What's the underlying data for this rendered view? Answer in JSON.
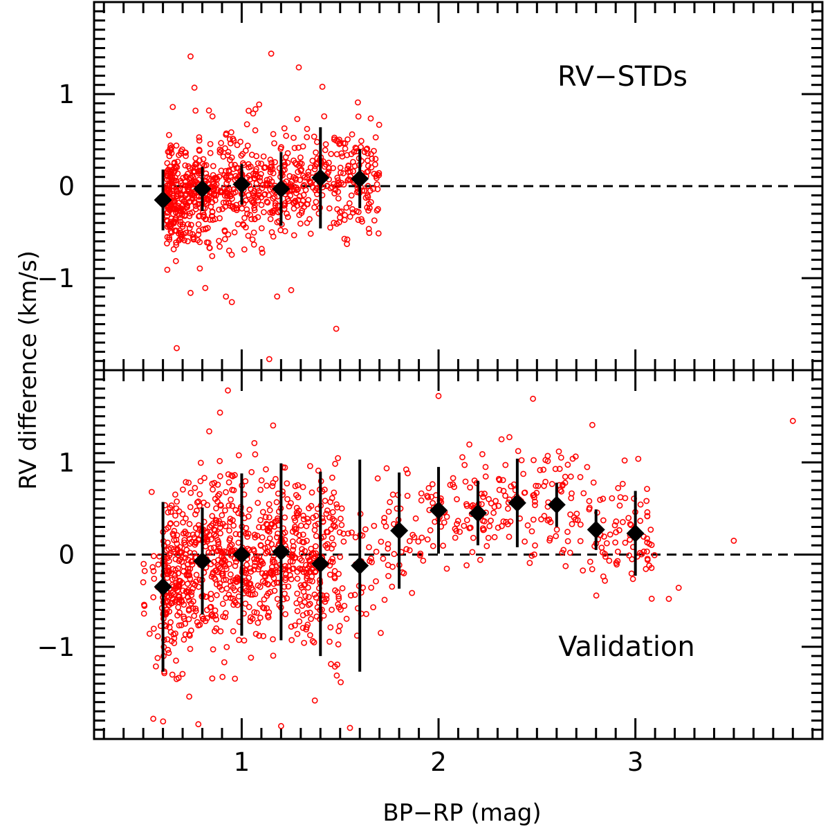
{
  "chart_data": {
    "type": "scatter",
    "xlabel": "BP−RP (mag)",
    "ylabel": "RV difference (km/s)",
    "xlim": [
      0.25,
      3.95
    ],
    "x_ticks": [
      1,
      2,
      3
    ],
    "x_tick_labels": [
      "1",
      "2",
      "3"
    ],
    "colors": {
      "points": "#ff0000",
      "binned": "#000000",
      "axes": "#000000"
    },
    "panels": [
      {
        "name": "top",
        "label": "RV−STDs",
        "ylim": [
          -2.0,
          2.0
        ],
        "y_ticks": [
          -1,
          0,
          1
        ],
        "y_tick_labels": [
          "−1",
          "0",
          "1"
        ],
        "reference_line_y": 0,
        "scatter": {
          "x_range": [
            0.6,
            1.7
          ],
          "n_points": 900,
          "spread": 0.28,
          "outliers": [
            [
              0.74,
              1.41
            ],
            [
              1.15,
              1.44
            ],
            [
              1.29,
              1.29
            ],
            [
              1.41,
              1.08
            ],
            [
              0.76,
              1.07
            ],
            [
              1.59,
              0.91
            ],
            [
              0.65,
              0.86
            ],
            [
              1.48,
              -1.55
            ],
            [
              0.92,
              -1.2
            ],
            [
              0.95,
              -1.26
            ],
            [
              0.74,
              -1.16
            ],
            [
              0.67,
              -1.76
            ],
            [
              1.14,
              -1.88
            ],
            [
              0.85,
              -0.76
            ]
          ]
        },
        "binned": {
          "x": [
            0.6,
            0.8,
            1.0,
            1.2,
            1.4,
            1.6
          ],
          "y": [
            -0.15,
            -0.03,
            0.02,
            -0.03,
            0.09,
            0.08
          ],
          "err": [
            0.33,
            0.24,
            0.22,
            0.4,
            0.55,
            0.32
          ]
        }
      },
      {
        "name": "bottom",
        "label": "Validation",
        "ylim": [
          -2.0,
          2.0
        ],
        "y_ticks": [
          -1,
          0,
          1
        ],
        "y_tick_labels": [
          "−1",
          "0",
          "1"
        ],
        "reference_line_y": 0,
        "scatter": {
          "x_range": [
            0.5,
            3.8
          ],
          "n_points": 1300,
          "spread": 0.45,
          "outliers": [
            [
              3.8,
              1.45
            ],
            [
              3.5,
              0.15
            ],
            [
              0.93,
              1.78
            ],
            [
              0.89,
              1.54
            ],
            [
              2.48,
              1.69
            ],
            [
              2.0,
              1.72
            ],
            [
              1.55,
              -1.88
            ],
            [
              1.2,
              -1.86
            ],
            [
              0.78,
              -1.84
            ],
            [
              3.22,
              -0.36
            ],
            [
              3.17,
              -0.48
            ],
            [
              0.5,
              -0.3
            ]
          ]
        },
        "binned": {
          "x": [
            0.6,
            0.8,
            1.0,
            1.2,
            1.4,
            1.6,
            1.8,
            2.0,
            2.2,
            2.4,
            2.6,
            2.8,
            3.0
          ],
          "y": [
            -0.35,
            -0.07,
            0.0,
            0.03,
            -0.1,
            -0.12,
            0.26,
            0.48,
            0.45,
            0.56,
            0.54,
            0.27,
            0.23
          ],
          "err": [
            0.92,
            0.58,
            0.88,
            0.96,
            1.0,
            1.15,
            0.63,
            0.47,
            0.35,
            0.48,
            0.24,
            0.22,
            0.46
          ]
        }
      }
    ]
  }
}
